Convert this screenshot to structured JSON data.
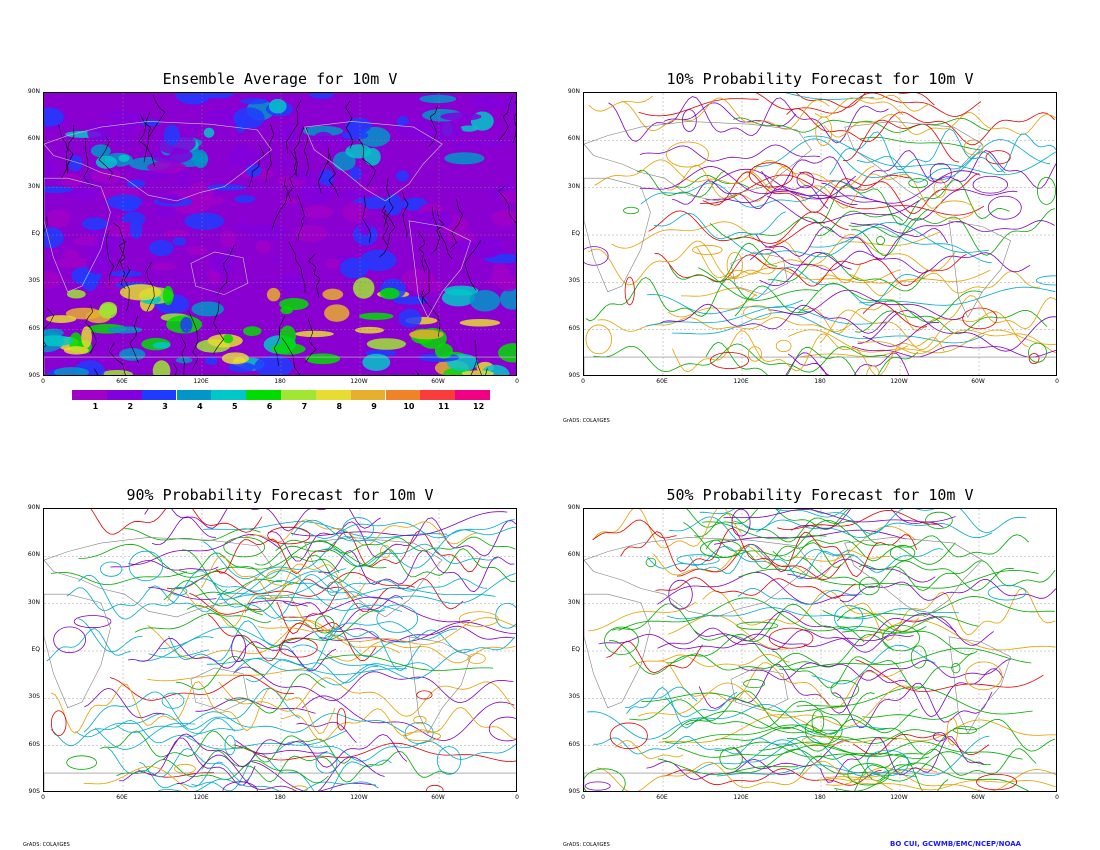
{
  "panels": {
    "ens": {
      "title": "Ensemble Average for 10m V"
    },
    "p10": {
      "title": "10% Probability Forecast for 10m V"
    },
    "p90": {
      "title": "90% Probability Forecast for 10m V"
    },
    "p50": {
      "title": "50% Probability Forecast for 10m V"
    }
  },
  "lat_labels": [
    "90N",
    "60N",
    "30N",
    "EQ",
    "30S",
    "60S",
    "90S"
  ],
  "lon_labels": [
    "0",
    "60E",
    "120E",
    "180",
    "120W",
    "60W",
    "0"
  ],
  "colorbar": {
    "labels": [
      "1",
      "2",
      "3",
      "4",
      "5",
      "6",
      "7",
      "8",
      "9",
      "10",
      "11",
      "12"
    ],
    "colors": [
      "#a000c8",
      "#8200dc",
      "#1e3cff",
      "#0096c8",
      "#00c8c8",
      "#00dc00",
      "#a0e632",
      "#e6dc32",
      "#e6af2d",
      "#f08228",
      "#fa3c3c",
      "#f00082"
    ]
  },
  "credits": {
    "grads_1": "GrADS: COLA/IGES",
    "grads_2": "GrADS: COLA/IGES",
    "grads_3": "GrADS: COLA/IGES",
    "author": "BO CUI, GCWMB/EMC/NCEP/NOAA"
  },
  "contour_colors": {
    "cyan": "#00aacc",
    "green": "#00aa00",
    "orange": "#e6a000",
    "purple": "#8000c0",
    "red": "#e00000",
    "land": "#808080"
  }
}
